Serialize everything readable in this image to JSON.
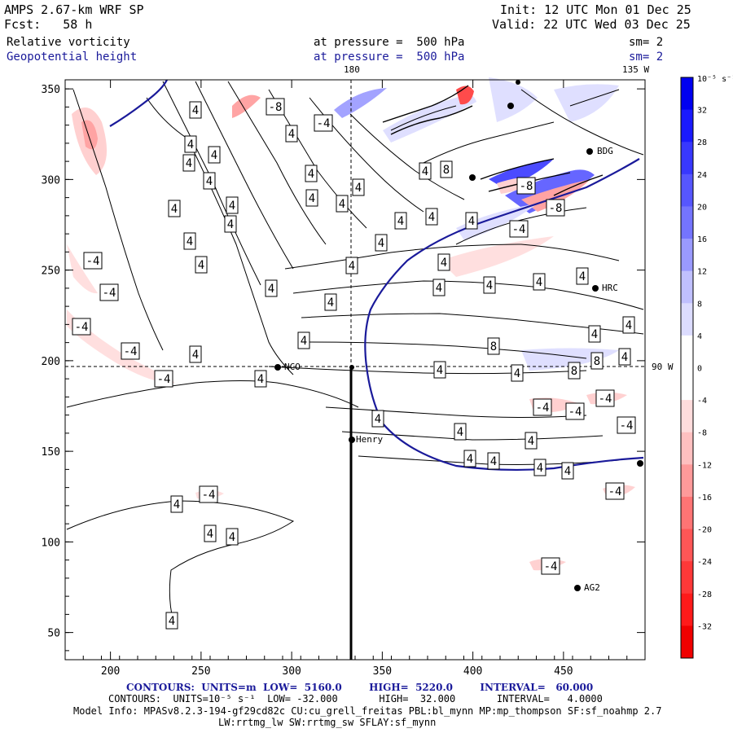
{
  "header": {
    "model": "AMPS 2.67-km WRF SP",
    "fcst": "Fcst:   58 h",
    "init": "Init: 12 UTC Mon 01 Dec 25",
    "valid": "Valid: 22 UTC Wed 03 Dec 25",
    "field1": "Relative vorticity",
    "field2": "Geopotential height",
    "level1": "at pressure =  500 hPa",
    "level2": "at pressure =  500 hPa",
    "sm1": "sm= 2",
    "sm2": "sm= 2"
  },
  "map_labels": {
    "lon180": "180",
    "lon135w": "135 W",
    "lat90w": "90 W",
    "stations": [
      "NCO",
      "Henry",
      "HRC",
      "BDG",
      "AG2"
    ]
  },
  "colorbar": {
    "unit_label": "10⁻⁵ s⁻¹",
    "ticks": [
      "32",
      "28",
      "24",
      "20",
      "16",
      "12",
      "8",
      "4",
      "0",
      "-4",
      "-8",
      "-12",
      "-16",
      "-20",
      "-24",
      "-28",
      "-32"
    ],
    "colors": [
      "#0000f0",
      "#1a1aff",
      "#3838ff",
      "#5656ff",
      "#7474ff",
      "#9a9aff",
      "#c0c0ff",
      "#dcdcff",
      "#ffffff",
      "#ffffff",
      "#ffdcdc",
      "#ffc0c0",
      "#ff9a9a",
      "#ff7474",
      "#ff5656",
      "#ff3838",
      "#ff1a1a",
      "#f00000"
    ]
  },
  "footer": {
    "contours1": "CONTOURS:  UNITS=m  LOW=  5160.0        HIGH=  5220.0        INTERVAL=   60.000",
    "contours2": "CONTOURS:  UNITS=10⁻⁵ s⁻¹  LOW= -32.000       HIGH=  32.000       INTERVAL=   4.0000",
    "model_info": "Model Info: MPASv8.2.3-194-gf29cd82c CU:cu_grell_freitas PBL:bl_mynn MP:mp_thompson SF:sf_noahmp 2.7",
    "model_info2": "LW:rrtmg_lw SW:rrtmg_sw SFLAY:sf_mynn"
  },
  "chart_data": {
    "type": "heatmap",
    "x_ticks": [
      "200",
      "250",
      "300",
      "350",
      "400",
      "450"
    ],
    "y_ticks": [
      "350",
      "300",
      "250",
      "200",
      "150",
      "100",
      "50"
    ],
    "xlim": [
      175,
      495
    ],
    "ylim": [
      35,
      355
    ],
    "contour_labels": [
      "4",
      "4",
      "4",
      "4",
      "4",
      "4",
      "4",
      "4",
      "4",
      "4",
      "4",
      "4",
      "4",
      "4",
      "4",
      "4",
      "4",
      "4",
      "4",
      "4",
      "4",
      "4",
      "4",
      "4",
      "4",
      "4",
      "4",
      "4",
      "4",
      "4",
      "4",
      "4",
      "4",
      "4",
      "4",
      "4",
      "4",
      "4",
      "4",
      "4",
      "4",
      "4",
      "4",
      "4",
      "4",
      "4",
      "4",
      "8",
      "8",
      "8",
      "8",
      "-8",
      "-8",
      "-8",
      "-4",
      "-4",
      "-4",
      "-4",
      "-4",
      "-4",
      "-4",
      "-4",
      "-4",
      "-4",
      "-4",
      "-4",
      "-4",
      "-4"
    ]
  }
}
